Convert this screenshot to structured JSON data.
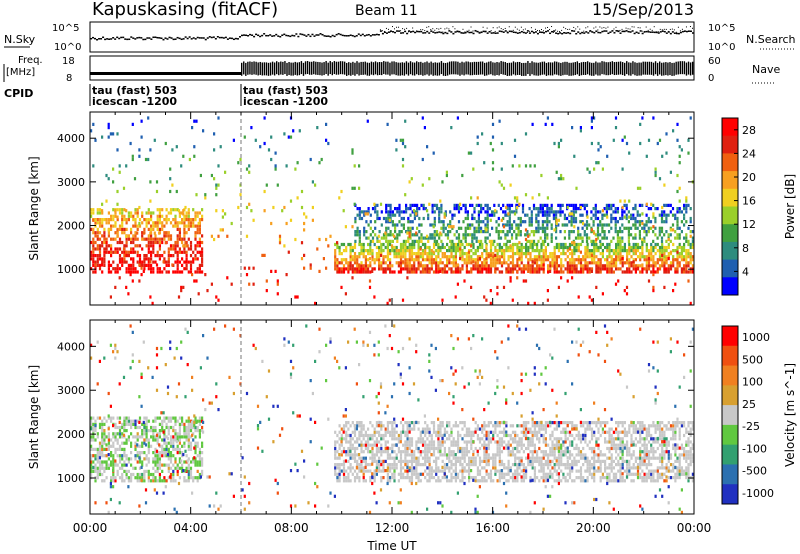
{
  "header": {
    "station": "Kapuskasing (fitACF)",
    "beam": "Beam 11",
    "date": "15/Sep/2013"
  },
  "top_panels": {
    "nsky_label": "N.Sky",
    "nsearch_label": "N.Search",
    "noise_ticks": [
      "10^5",
      "10^0"
    ],
    "freq_label_1": "Freq.",
    "freq_label_2": "[MHz]",
    "freq_ticks": [
      "18",
      "8"
    ],
    "nave_ticks": [
      "60",
      "0"
    ],
    "nave_label": "Nave",
    "cpid_label": "CPID"
  },
  "cpid_segments": [
    {
      "start_hour": 0.0,
      "line1": "tau (fast) 503",
      "line2": "icescan -1200"
    },
    {
      "start_hour": 6.0,
      "line1": "tau (fast) 503",
      "line2": "icescan -1200"
    }
  ],
  "colors": {
    "power_scale": [
      "#0000ff",
      "#1f5fb0",
      "#2e8c7e",
      "#40a040",
      "#9ad02a",
      "#f0d020",
      "#f7a020",
      "#f06010",
      "#e02010",
      "#ff0000"
    ],
    "velocity_scale": [
      "#2030c0",
      "#2b70b0",
      "#32a070",
      "#60c840",
      "#c8c8c8",
      "#d8a030",
      "#f08020",
      "#f05010",
      "#ff0000"
    ]
  },
  "chart_data": [
    {
      "type": "heatmap",
      "title": "Power",
      "xlabel": "",
      "ylabel": "Slant Range [km]",
      "x_ticks": [
        "00:00",
        "04:00",
        "08:00",
        "12:00",
        "16:00",
        "20:00",
        "00:00"
      ],
      "xlim_hours": [
        0,
        24
      ],
      "ylim_km": [
        180,
        4600
      ],
      "y_ticks": [
        1000,
        2000,
        3000,
        4000
      ],
      "colorbar_label": "Power [dB]",
      "colorbar_ticks": [
        4,
        8,
        12,
        16,
        20,
        24,
        28
      ],
      "colorbar_range": [
        0,
        30
      ],
      "bands": [
        {
          "t0": 0.0,
          "t1": 4.5,
          "r0": 900,
          "r1": 2400,
          "density": 0.55,
          "v0": 16,
          "v1": 30
        },
        {
          "t0": 9.7,
          "t1": 24,
          "r0": 900,
          "r1": 1600,
          "density": 0.7,
          "v0": 10,
          "v1": 26
        },
        {
          "t0": 10.5,
          "t1": 24,
          "r0": 1600,
          "r1": 2500,
          "density": 0.45,
          "v0": 2,
          "v1": 12
        },
        {
          "t0": 0.0,
          "t1": 24,
          "r0": 180,
          "r1": 4500,
          "density": 0.03,
          "v0": 2,
          "v1": 30
        }
      ]
    },
    {
      "type": "heatmap",
      "title": "Velocity",
      "xlabel": "Time UT",
      "ylabel": "Slant Range [km]",
      "x_ticks": [
        "00:00",
        "04:00",
        "08:00",
        "12:00",
        "16:00",
        "20:00",
        "00:00"
      ],
      "xlim_hours": [
        0,
        24
      ],
      "ylim_km": [
        180,
        4600
      ],
      "y_ticks": [
        1000,
        2000,
        3000,
        4000
      ],
      "colorbar_label": "Velocity [m s^-1]",
      "colorbar_ticks": [
        1000,
        500,
        100,
        25,
        -25,
        -100,
        -500,
        -1000
      ],
      "bands": [
        {
          "t0": 0.0,
          "t1": 4.5,
          "r0": 900,
          "r1": 2400,
          "density": 0.55,
          "mix": "ground_green"
        },
        {
          "t0": 9.7,
          "t1": 24,
          "r0": 900,
          "r1": 2300,
          "density": 0.6,
          "mix": "ground"
        },
        {
          "t0": 0.0,
          "t1": 24,
          "r0": 180,
          "r1": 4500,
          "density": 0.03,
          "mix": "scatter"
        }
      ]
    }
  ]
}
